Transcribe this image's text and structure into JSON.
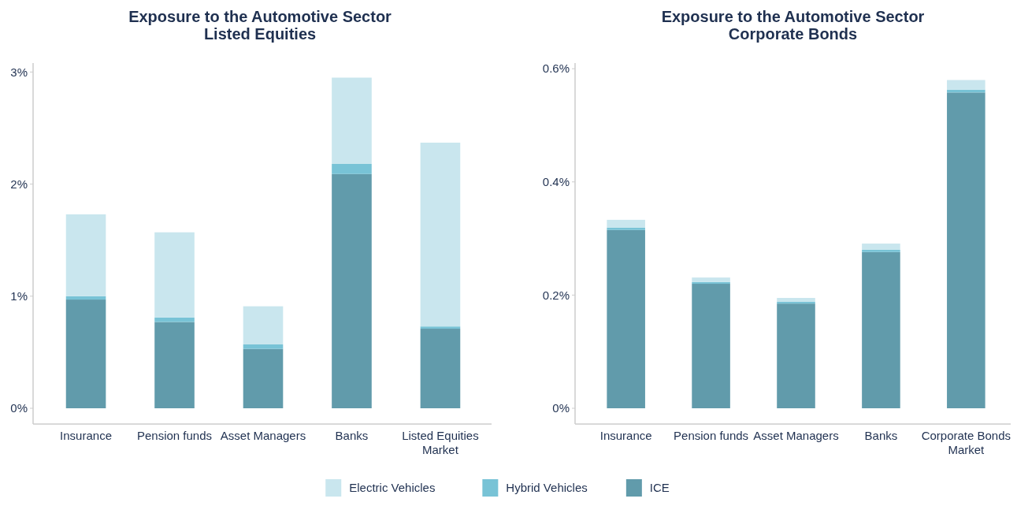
{
  "chart_data": [
    {
      "type": "bar",
      "title": "Exposure to the Automotive Sector\nListed Equities",
      "categories": [
        "Insurance",
        "Pension funds",
        "Asset Managers",
        "Banks",
        "Listed Equities Market"
      ],
      "stacked": true,
      "legend": "bottom",
      "ylim": [
        0,
        3.08
      ],
      "yticks": [
        {
          "value": 0,
          "label": "0%"
        },
        {
          "value": 1,
          "label": "1%"
        },
        {
          "value": 2,
          "label": "2%"
        },
        {
          "value": 3,
          "label": "3%"
        }
      ],
      "series": [
        {
          "name": "ICE",
          "color": "#619bab",
          "values": [
            0.97,
            0.77,
            0.53,
            2.09,
            0.71
          ]
        },
        {
          "name": "Hybrid Vehicles",
          "color": "#78c3d6",
          "values": [
            0.03,
            0.04,
            0.04,
            0.09,
            0.02
          ]
        },
        {
          "name": "Electric Vehicles",
          "color": "#c9e6ee",
          "values": [
            0.73,
            0.76,
            0.34,
            0.77,
            1.64
          ]
        }
      ]
    },
    {
      "type": "bar",
      "title": "Exposure to the Automotive Sector\nCorporate Bonds",
      "categories": [
        "Insurance",
        "Pension funds",
        "Asset Managers",
        "Banks",
        "Corporate Bonds Market"
      ],
      "stacked": true,
      "ylim": [
        0,
        0.61
      ],
      "yticks": [
        {
          "value": 0,
          "label": "0%"
        },
        {
          "value": 0.2,
          "label": "0.2%"
        },
        {
          "value": 0.4,
          "label": "0.4%"
        },
        {
          "value": 0.6,
          "label": "0.6%"
        }
      ],
      "series": [
        {
          "color": "#619bab",
          "values": [
            0.315,
            0.22,
            0.185,
            0.276,
            0.558
          ]
        },
        {
          "color": "#78c3d6",
          "values": [
            0.004,
            0.003,
            0.003,
            0.004,
            0.005
          ]
        },
        {
          "color": "#c9e6ee",
          "values": [
            0.014,
            0.008,
            0.007,
            0.011,
            0.017
          ]
        }
      ]
    }
  ]
}
